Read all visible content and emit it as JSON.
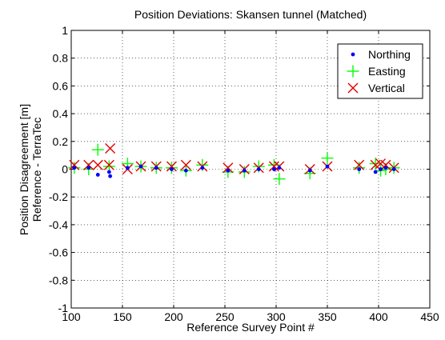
{
  "chart_data": {
    "type": "scatter",
    "title": "Position Deviations: Skansen tunnel (Matched)",
    "xlabel": "Reference Survey Point #",
    "ylabel_line1": "Position Disagreement [m]",
    "ylabel_line2": "Reference - TerraTec",
    "xlim": [
      100,
      450
    ],
    "ylim": [
      -1,
      1
    ],
    "xticks": [
      100,
      150,
      200,
      250,
      300,
      350,
      400,
      450
    ],
    "yticks": [
      -1,
      -0.8,
      -0.6,
      -0.4,
      -0.2,
      0,
      0.2,
      0.4,
      0.6,
      0.8,
      1
    ],
    "xtick_labels": [
      "100",
      "150",
      "200",
      "250",
      "300",
      "350",
      "400",
      "450"
    ],
    "ytick_labels": [
      "-1",
      "-0.8",
      "-0.6",
      "-0.4",
      "-0.2",
      "0",
      "0.2",
      "0.4",
      "0.6",
      "0.8",
      "1"
    ],
    "grid": true,
    "legend_position": "top-right",
    "series": [
      {
        "name": "Northing",
        "marker": "dot",
        "color": "#0000ff",
        "points": [
          [
            103,
            0.01
          ],
          [
            117,
            0.01
          ],
          [
            126,
            -0.04
          ],
          [
            137,
            -0.02
          ],
          [
            138,
            -0.05
          ],
          [
            155,
            0.01
          ],
          [
            168,
            0.02
          ],
          [
            183,
            0.01
          ],
          [
            198,
            0.0
          ],
          [
            212,
            -0.01
          ],
          [
            228,
            0.01
          ],
          [
            253,
            -0.01
          ],
          [
            269,
            -0.01
          ],
          [
            283,
            0.0
          ],
          [
            298,
            0.0
          ],
          [
            303,
            0.01
          ],
          [
            333,
            -0.01
          ],
          [
            350,
            0.02
          ],
          [
            381,
            0.0
          ],
          [
            397,
            -0.02
          ],
          [
            402,
            0.0
          ],
          [
            407,
            0.01
          ],
          [
            415,
            0.0
          ]
        ]
      },
      {
        "name": "Easting",
        "marker": "plus",
        "color": "#00ff00",
        "points": [
          [
            103,
            0.01
          ],
          [
            117,
            0.0
          ],
          [
            126,
            0.14
          ],
          [
            137,
            0.02
          ],
          [
            155,
            0.04
          ],
          [
            168,
            0.02
          ],
          [
            183,
            0.01
          ],
          [
            198,
            0.01
          ],
          [
            212,
            -0.01
          ],
          [
            228,
            0.03
          ],
          [
            253,
            -0.02
          ],
          [
            269,
            -0.02
          ],
          [
            283,
            0.02
          ],
          [
            298,
            0.03
          ],
          [
            303,
            -0.07
          ],
          [
            333,
            -0.03
          ],
          [
            350,
            0.08
          ],
          [
            381,
            0.01
          ],
          [
            397,
            0.04
          ],
          [
            402,
            -0.01
          ],
          [
            407,
            0.0
          ],
          [
            415,
            0.01
          ]
        ]
      },
      {
        "name": "Vertical",
        "marker": "x",
        "color": "#e00000",
        "points": [
          [
            103,
            0.03
          ],
          [
            117,
            0.03
          ],
          [
            126,
            0.03
          ],
          [
            137,
            0.03
          ],
          [
            138,
            0.15
          ],
          [
            155,
            0.0
          ],
          [
            168,
            0.02
          ],
          [
            183,
            0.02
          ],
          [
            198,
            0.02
          ],
          [
            212,
            0.03
          ],
          [
            228,
            0.02
          ],
          [
            253,
            0.01
          ],
          [
            269,
            0.0
          ],
          [
            283,
            0.01
          ],
          [
            298,
            0.02
          ],
          [
            303,
            0.02
          ],
          [
            333,
            0.0
          ],
          [
            350,
            0.02
          ],
          [
            381,
            0.03
          ],
          [
            397,
            0.03
          ],
          [
            402,
            0.04
          ],
          [
            407,
            0.03
          ],
          [
            415,
            0.01
          ]
        ]
      }
    ]
  }
}
